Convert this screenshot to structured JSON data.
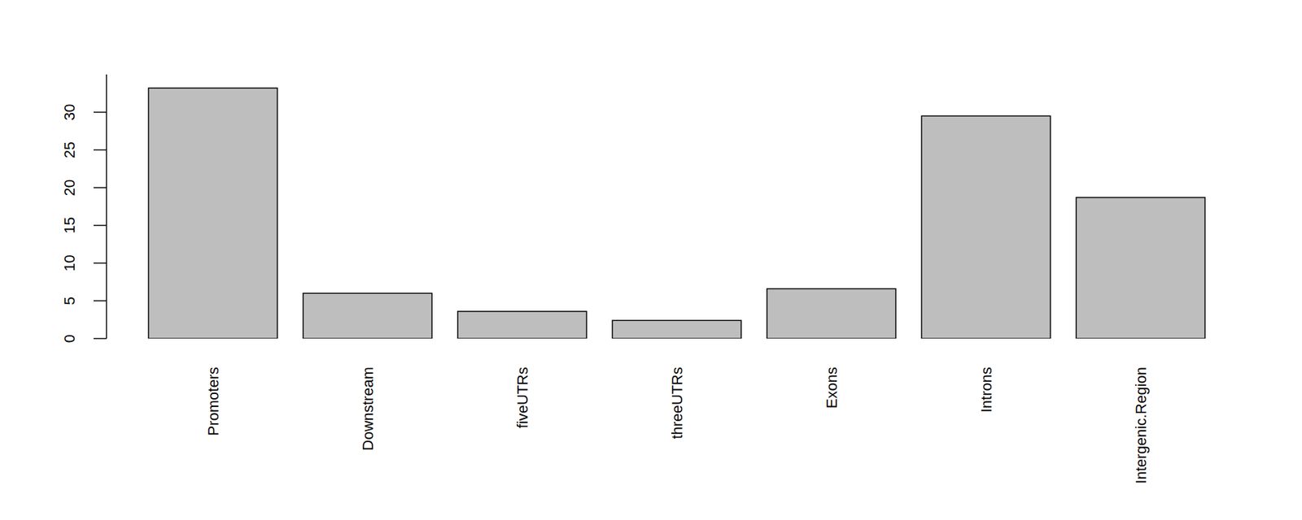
{
  "chart_data": {
    "type": "bar",
    "categories": [
      "Promoters",
      "Downstream",
      "fiveUTRs",
      "threeUTRs",
      "Exons",
      "Introns",
      "Intergenic.Region"
    ],
    "values": [
      33.2,
      6.0,
      3.6,
      2.4,
      6.6,
      29.5,
      18.7
    ],
    "color": "#bebebe",
    "ylim": [
      0,
      35
    ],
    "yticks": [
      0,
      5,
      10,
      15,
      20,
      25,
      30
    ]
  }
}
